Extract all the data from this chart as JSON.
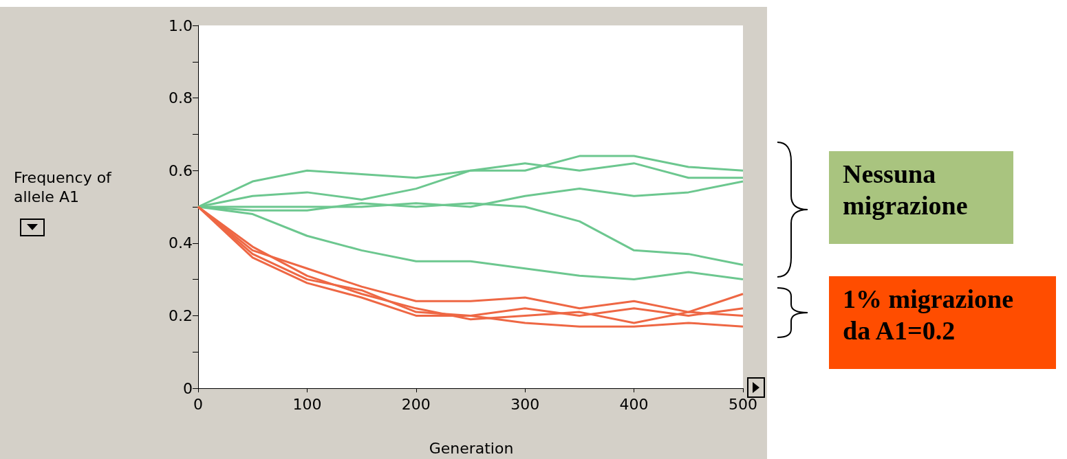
{
  "chart_data": {
    "type": "line",
    "xlabel": "Generation",
    "ylabel": "Frequency of allele A1",
    "x": [
      0,
      50,
      100,
      150,
      200,
      250,
      300,
      350,
      400,
      450,
      500
    ],
    "series": [
      {
        "color": "#6cc78f",
        "values": [
          0.5,
          0.57,
          0.6,
          0.59,
          0.58,
          0.6,
          0.6,
          0.64,
          0.64,
          0.61,
          0.6
        ]
      },
      {
        "color": "#6cc78f",
        "values": [
          0.5,
          0.53,
          0.54,
          0.52,
          0.55,
          0.6,
          0.62,
          0.6,
          0.62,
          0.58,
          0.58
        ]
      },
      {
        "color": "#6cc78f",
        "values": [
          0.5,
          0.5,
          0.5,
          0.5,
          0.51,
          0.5,
          0.53,
          0.55,
          0.53,
          0.54,
          0.57
        ]
      },
      {
        "color": "#6cc78f",
        "values": [
          0.5,
          0.49,
          0.49,
          0.51,
          0.5,
          0.51,
          0.5,
          0.46,
          0.38,
          0.37,
          0.34
        ]
      },
      {
        "color": "#6cc78f",
        "values": [
          0.5,
          0.48,
          0.42,
          0.38,
          0.35,
          0.35,
          0.33,
          0.31,
          0.3,
          0.32,
          0.3
        ]
      },
      {
        "color": "#ee6744",
        "values": [
          0.5,
          0.38,
          0.33,
          0.28,
          0.24,
          0.24,
          0.25,
          0.22,
          0.24,
          0.21,
          0.26
        ]
      },
      {
        "color": "#ee6744",
        "values": [
          0.5,
          0.37,
          0.3,
          0.27,
          0.21,
          0.2,
          0.22,
          0.2,
          0.22,
          0.2,
          0.22
        ]
      },
      {
        "color": "#ee6744",
        "values": [
          0.5,
          0.36,
          0.29,
          0.25,
          0.2,
          0.2,
          0.18,
          0.17,
          0.17,
          0.18,
          0.17
        ]
      },
      {
        "color": "#ee6744",
        "values": [
          0.5,
          0.39,
          0.31,
          0.26,
          0.22,
          0.19,
          0.2,
          0.21,
          0.18,
          0.21,
          0.2
        ]
      }
    ],
    "xlim": [
      0,
      500
    ],
    "xticks": [
      0,
      100,
      200,
      300,
      400,
      500
    ],
    "ylim": [
      0,
      1
    ],
    "yticks": [
      0,
      {
        "value": 0.1,
        "label": null
      },
      {
        "value": 0.2,
        "label": "0.2"
      },
      {
        "value": 0.3,
        "label": null
      },
      {
        "value": 0.4,
        "label": "0.4"
      },
      {
        "value": 0.5,
        "label": null
      },
      {
        "value": 0.6,
        "label": "0.6"
      },
      {
        "value": 0.7,
        "label": null
      },
      {
        "value": 0.8,
        "label": "0.8"
      },
      {
        "value": 0.9,
        "label": null
      },
      {
        "value": 1,
        "label": "1.0"
      }
    ],
    "grid": false,
    "marker": "none",
    "line_style": "solid",
    "annotations": [
      "Nessuna migrazione",
      "1% migrazione da A1=0.2"
    ]
  }
}
